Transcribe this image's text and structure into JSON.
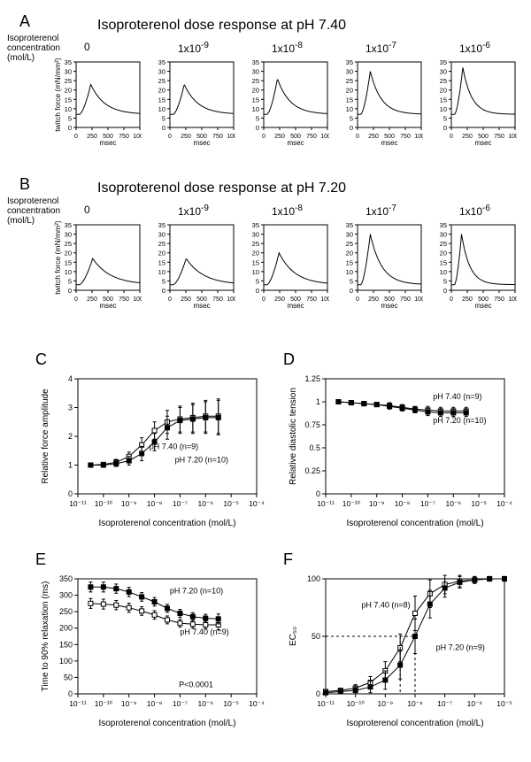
{
  "panel_labels": {
    "A": "A",
    "B": "B",
    "C": "C",
    "D": "D",
    "E": "E",
    "F": "F"
  },
  "titles": {
    "A": "Isoproterenol dose response at pH 7.40",
    "B": "Isoproterenol dose response at pH 7.20"
  },
  "conc_header": "Isoproterenol\nconcentration\n(mol/L)",
  "concentrations": [
    "0",
    "1x10⁻⁹",
    "1x10⁻⁸",
    "1x10⁻⁷",
    "1x10⁻⁶"
  ],
  "twitch": {
    "xlim": [
      0,
      1000
    ],
    "ylim": [
      0,
      35
    ],
    "xticks": [
      0,
      250,
      500,
      750,
      1000
    ],
    "yticks": [
      0,
      5,
      10,
      15,
      20,
      25,
      30,
      35
    ],
    "xlabel": "msec",
    "ylabel": "twitch force (mN/mm²)",
    "line_color": "#000000",
    "line_width": 1,
    "A": {
      "baseline": 7,
      "peaks": [
        23,
        23,
        26,
        30,
        32
      ],
      "t_peak": [
        230,
        225,
        215,
        200,
        180
      ],
      "decay_tau": [
        220,
        215,
        200,
        170,
        140
      ]
    },
    "B": {
      "baseline": 3,
      "peaks": [
        17,
        17,
        20,
        30,
        30
      ],
      "t_peak": [
        260,
        255,
        240,
        200,
        160
      ],
      "decay_tau": [
        280,
        275,
        250,
        180,
        130
      ]
    }
  },
  "dose": {
    "xlog_min": -11,
    "xlog_max": -4,
    "xlabel": "Isoproterenol concentration (mol/L)",
    "series_colors": {
      "7.40": "#ffffff",
      "7.20": "#000000",
      "outline": "#000000"
    },
    "marker_size": 5,
    "panels": {
      "C": {
        "ylabel": "Relative force amplitude",
        "ylim": [
          0,
          4
        ],
        "yticks": [
          0,
          1,
          2,
          3,
          4
        ],
        "legend": [
          "pH 7.40 (n=9)",
          "pH 7.20 (n=10)"
        ],
        "x": [
          -10.5,
          -10,
          -9.5,
          -9,
          -8.5,
          -8,
          -7.5,
          -7,
          -6.5,
          -6,
          -5.5
        ],
        "y740": [
          1.0,
          1.02,
          1.1,
          1.3,
          1.7,
          2.2,
          2.5,
          2.6,
          2.65,
          2.7,
          2.7
        ],
        "y720": [
          1.0,
          1.0,
          1.05,
          1.15,
          1.4,
          1.8,
          2.3,
          2.55,
          2.6,
          2.65,
          2.65
        ],
        "err": [
          0,
          0.05,
          0.1,
          0.15,
          0.25,
          0.3,
          0.4,
          0.45,
          0.5,
          0.55,
          0.6
        ]
      },
      "D": {
        "ylabel": "Relative diastolic tension",
        "ylim": [
          0,
          1.25
        ],
        "yticks": [
          0,
          0.25,
          0.5,
          0.75,
          1.0,
          1.25
        ],
        "legend": [
          "pH 7.40 (n=9)",
          "pH 7.20 (n=10)"
        ],
        "x": [
          -10.5,
          -10,
          -9.5,
          -9,
          -8.5,
          -8,
          -7.5,
          -7,
          -6.5,
          -6,
          -5.5
        ],
        "y740": [
          1.0,
          0.99,
          0.98,
          0.97,
          0.96,
          0.94,
          0.92,
          0.91,
          0.9,
          0.9,
          0.9
        ],
        "y720": [
          1.0,
          0.99,
          0.98,
          0.97,
          0.95,
          0.93,
          0.91,
          0.89,
          0.88,
          0.88,
          0.88
        ],
        "err": [
          0,
          0.02,
          0.02,
          0.02,
          0.03,
          0.03,
          0.03,
          0.04,
          0.04,
          0.04,
          0.04
        ]
      },
      "E": {
        "ylabel": "Time to 90% relaxation (ms)",
        "ylim": [
          0,
          350
        ],
        "yticks": [
          0,
          50,
          100,
          150,
          200,
          250,
          300,
          350
        ],
        "legend": [
          "pH 7.20 (n=10)",
          "pH 7.40 (n=9)"
        ],
        "pval": "P<0.0001",
        "x": [
          -10.5,
          -10,
          -9.5,
          -9,
          -8.5,
          -8,
          -7.5,
          -7,
          -6.5,
          -6,
          -5.5
        ],
        "y720": [
          325,
          325,
          320,
          310,
          295,
          280,
          260,
          245,
          235,
          230,
          228
        ],
        "y740": [
          275,
          273,
          270,
          262,
          252,
          240,
          225,
          215,
          212,
          210,
          210
        ],
        "err": [
          15,
          15,
          14,
          14,
          13,
          13,
          12,
          12,
          12,
          12,
          15
        ]
      },
      "F": {
        "ylabel": "EC₅₀",
        "ylim": [
          0,
          100
        ],
        "yticks": [
          0,
          50,
          100
        ],
        "xlog_min": -11,
        "xlog_max": -5,
        "legend": [
          "pH 7.40 (n=8)",
          "pH 7.20 (n=9)"
        ],
        "x": [
          -11,
          -10.5,
          -10,
          -9.5,
          -9,
          -8.5,
          -8,
          -7.5,
          -7,
          -6.5,
          -6,
          -5.5,
          -5
        ],
        "y740": [
          2,
          3,
          5,
          10,
          20,
          40,
          70,
          87,
          95,
          98,
          99,
          100,
          100
        ],
        "y720": [
          1,
          2,
          3,
          6,
          12,
          25,
          50,
          78,
          92,
          97,
          99,
          100,
          100
        ],
        "err": [
          1,
          2,
          3,
          5,
          8,
          12,
          15,
          12,
          8,
          5,
          3,
          2,
          2
        ],
        "ec50_740": -8.5,
        "ec50_720": -8.0
      }
    }
  },
  "colors": {
    "bg": "#ffffff",
    "axis": "#000000",
    "tick": "#000000",
    "text": "#000000"
  }
}
